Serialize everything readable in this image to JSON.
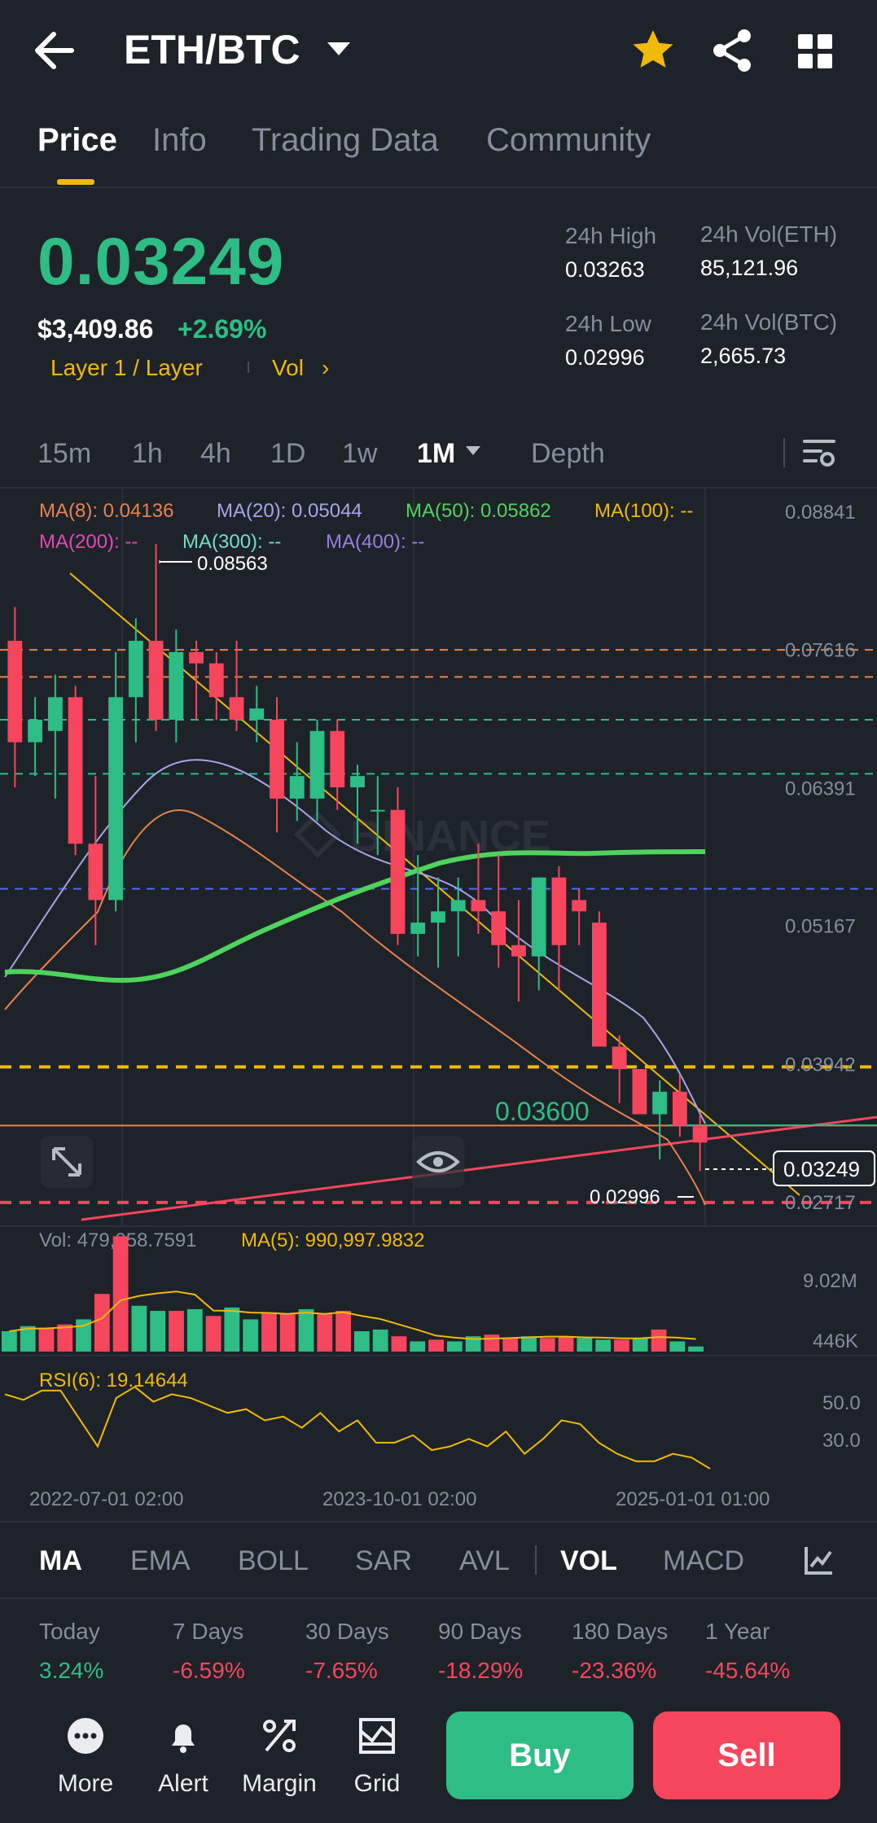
{
  "header": {
    "pair": "ETH/BTC",
    "icons": [
      "back-arrow-icon",
      "star-icon",
      "share-icon",
      "grid-icon"
    ],
    "star_color": "#f0b90b"
  },
  "tabs": [
    {
      "label": "Price",
      "active": true
    },
    {
      "label": "Info",
      "active": false
    },
    {
      "label": "Trading Data",
      "active": false
    },
    {
      "label": "Community",
      "active": false
    }
  ],
  "price": {
    "last": "0.03249",
    "usd": "$3,409.86",
    "change": "+2.69%",
    "tag": "Layer 1 / Layer",
    "vol_link": "Vol"
  },
  "stats": {
    "high_label": "24h High",
    "high_value": "0.03263",
    "low_label": "24h Low",
    "low_value": "0.02996",
    "vol_eth_label": "24h Vol(ETH)",
    "vol_eth_value": "85,121.96",
    "vol_btc_label": "24h Vol(BTC)",
    "vol_btc_value": "2,665.73"
  },
  "intervals": [
    {
      "label": "15m",
      "active": false
    },
    {
      "label": "1h",
      "active": false
    },
    {
      "label": "4h",
      "active": false
    },
    {
      "label": "1D",
      "active": false
    },
    {
      "label": "1w",
      "active": false
    },
    {
      "label": "1M",
      "active": true
    },
    {
      "label": "Depth",
      "active": false
    }
  ],
  "ma_legend": {
    "ma8": "MA(8): 0.04136",
    "ma20": "MA(20): 0.05044",
    "ma50": "MA(50): 0.05862",
    "ma100": "MA(100): --",
    "ma200": "MA(200): --",
    "ma300": "MA(300): --",
    "ma400": "MA(400): --"
  },
  "chart_data": {
    "type": "candlestick",
    "interval": "1M",
    "y_ticks": [
      "0.08841",
      "0.07616",
      "0.06391",
      "0.05167",
      "0.03942",
      "0.02717"
    ],
    "ylim": [
      0.0255,
      0.0895
    ],
    "high_marker": "0.08563",
    "low_marker": "0.02996",
    "current_price_tag": "0.03249",
    "drawn_level_label": "0.03600",
    "candles": [
      {
        "o": 0.077,
        "h": 0.08,
        "l": 0.064,
        "c": 0.068
      },
      {
        "o": 0.068,
        "h": 0.072,
        "l": 0.065,
        "c": 0.07
      },
      {
        "o": 0.069,
        "h": 0.074,
        "l": 0.063,
        "c": 0.072
      },
      {
        "o": 0.072,
        "h": 0.073,
        "l": 0.058,
        "c": 0.059
      },
      {
        "o": 0.059,
        "h": 0.065,
        "l": 0.05,
        "c": 0.054
      },
      {
        "o": 0.054,
        "h": 0.076,
        "l": 0.053,
        "c": 0.072
      },
      {
        "o": 0.072,
        "h": 0.079,
        "l": 0.068,
        "c": 0.077
      },
      {
        "o": 0.077,
        "h": 0.0856,
        "l": 0.069,
        "c": 0.07
      },
      {
        "o": 0.07,
        "h": 0.078,
        "l": 0.068,
        "c": 0.076
      },
      {
        "o": 0.076,
        "h": 0.077,
        "l": 0.07,
        "c": 0.075
      },
      {
        "o": 0.075,
        "h": 0.076,
        "l": 0.07,
        "c": 0.072
      },
      {
        "o": 0.072,
        "h": 0.077,
        "l": 0.069,
        "c": 0.07
      },
      {
        "o": 0.07,
        "h": 0.073,
        "l": 0.068,
        "c": 0.071
      },
      {
        "o": 0.07,
        "h": 0.072,
        "l": 0.06,
        "c": 0.063
      },
      {
        "o": 0.063,
        "h": 0.068,
        "l": 0.061,
        "c": 0.065
      },
      {
        "o": 0.063,
        "h": 0.07,
        "l": 0.061,
        "c": 0.069
      },
      {
        "o": 0.069,
        "h": 0.07,
        "l": 0.062,
        "c": 0.064
      },
      {
        "o": 0.064,
        "h": 0.066,
        "l": 0.059,
        "c": 0.065
      },
      {
        "o": 0.062,
        "h": 0.065,
        "l": 0.058,
        "c": 0.062
      },
      {
        "o": 0.062,
        "h": 0.064,
        "l": 0.05,
        "c": 0.051
      },
      {
        "o": 0.051,
        "h": 0.058,
        "l": 0.049,
        "c": 0.052
      },
      {
        "o": 0.052,
        "h": 0.056,
        "l": 0.048,
        "c": 0.053
      },
      {
        "o": 0.053,
        "h": 0.056,
        "l": 0.049,
        "c": 0.054
      },
      {
        "o": 0.054,
        "h": 0.059,
        "l": 0.051,
        "c": 0.053
      },
      {
        "o": 0.053,
        "h": 0.058,
        "l": 0.048,
        "c": 0.05
      },
      {
        "o": 0.05,
        "h": 0.054,
        "l": 0.045,
        "c": 0.049
      },
      {
        "o": 0.049,
        "h": 0.056,
        "l": 0.046,
        "c": 0.056
      },
      {
        "o": 0.056,
        "h": 0.057,
        "l": 0.046,
        "c": 0.05
      },
      {
        "o": 0.054,
        "h": 0.055,
        "l": 0.05,
        "c": 0.053
      },
      {
        "o": 0.052,
        "h": 0.053,
        "l": 0.041,
        "c": 0.041
      },
      {
        "o": 0.041,
        "h": 0.042,
        "l": 0.036,
        "c": 0.039
      },
      {
        "o": 0.039,
        "h": 0.039,
        "l": 0.035,
        "c": 0.035
      },
      {
        "o": 0.035,
        "h": 0.038,
        "l": 0.031,
        "c": 0.037
      },
      {
        "o": 0.037,
        "h": 0.0385,
        "l": 0.033,
        "c": 0.034
      },
      {
        "o": 0.034,
        "h": 0.035,
        "l": 0.02996,
        "c": 0.03249
      }
    ]
  },
  "volume": {
    "vol_label": "Vol: 479,058.7591",
    "ma5_label": "MA(5): 990,997.9832",
    "ticks": [
      "9.02M",
      "446K"
    ],
    "values": [
      1.2,
      1.5,
      1.4,
      1.6,
      1.9,
      3.4,
      6.8,
      2.7,
      2.4,
      2.4,
      2.5,
      2.1,
      2.6,
      1.9,
      2.3,
      2.2,
      2.5,
      2.2,
      2.4,
      1.2,
      1.3,
      0.9,
      0.6,
      0.7,
      0.6,
      0.9,
      1.0,
      0.8,
      0.9,
      0.8,
      0.9,
      0.8,
      0.7,
      0.7,
      0.8,
      1.3,
      0.6,
      0.3
    ]
  },
  "rsi": {
    "label": "RSI(6): 19.14644",
    "ticks": [
      "50.0",
      "30.0"
    ],
    "values": [
      58,
      55,
      60,
      60,
      45,
      30,
      56,
      62,
      54,
      58,
      56,
      52,
      48,
      50,
      44,
      46,
      40,
      48,
      38,
      44,
      32,
      32,
      36,
      28,
      30,
      34,
      30,
      38,
      26,
      34,
      44,
      42,
      32,
      26,
      22,
      22,
      26,
      24,
      18
    ]
  },
  "time_axis": [
    "2022-07-01 02:00",
    "2023-10-01 02:00",
    "2025-01-01 01:00"
  ],
  "indicators": [
    {
      "label": "MA",
      "active": true
    },
    {
      "label": "EMA",
      "active": false
    },
    {
      "label": "BOLL",
      "active": false
    },
    {
      "label": "SAR",
      "active": false
    },
    {
      "label": "AVL",
      "active": false
    },
    {
      "label": "VOL",
      "active": true
    },
    {
      "label": "MACD",
      "active": false
    }
  ],
  "performance": [
    {
      "label": "Today",
      "value": "3.24%",
      "positive": true
    },
    {
      "label": "7 Days",
      "value": "-6.59%",
      "positive": false
    },
    {
      "label": "30 Days",
      "value": "-7.65%",
      "positive": false
    },
    {
      "label": "90 Days",
      "value": "-18.29%",
      "positive": false
    },
    {
      "label": "180 Days",
      "value": "-23.36%",
      "positive": false
    },
    {
      "label": "1 Year",
      "value": "-45.64%",
      "positive": false
    }
  ],
  "bottom_nav": {
    "more": "More",
    "alert": "Alert",
    "margin": "Margin",
    "grid": "Grid",
    "buy": "Buy",
    "sell": "Sell"
  },
  "colors": {
    "up": "#2ebd85",
    "down": "#f6465d",
    "accent": "#f0b90b",
    "ma8": "#e8834e",
    "ma20": "#a7a6e8",
    "ma50": "#4ed35c"
  }
}
